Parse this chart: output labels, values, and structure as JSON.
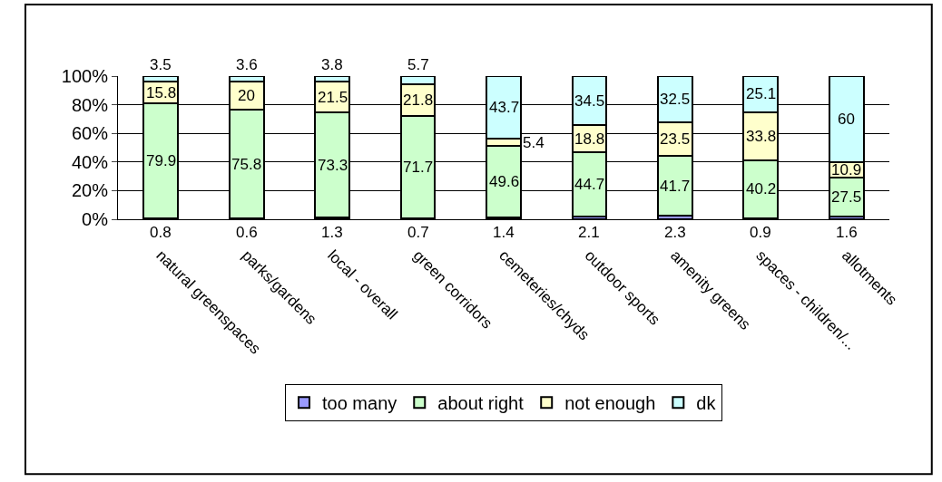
{
  "chart_data": {
    "type": "bar",
    "stacked": true,
    "categories": [
      "natural greenspaces",
      "parks/gardens",
      "local - overall",
      "green corridors",
      "cemeteries/chyds",
      "outdoor sports",
      "amenity greens",
      "spaces - children/...",
      "allotments"
    ],
    "series": [
      {
        "name": "too many",
        "color": "#9999ff",
        "values": [
          0.8,
          0.6,
          1.3,
          0.7,
          1.4,
          2.1,
          2.3,
          0.9,
          1.6
        ]
      },
      {
        "name": "about right",
        "color": "#ccffcc",
        "values": [
          79.9,
          75.8,
          73.3,
          71.7,
          49.6,
          44.7,
          41.7,
          40.2,
          27.5
        ]
      },
      {
        "name": "not enough",
        "color": "#ffffcc",
        "values": [
          15.8,
          20,
          21.5,
          21.8,
          5.4,
          18.8,
          23.5,
          33.8,
          10.9
        ]
      },
      {
        "name": "dk",
        "color": "#ccffff",
        "values": [
          3.5,
          3.6,
          3.8,
          5.7,
          43.7,
          34.5,
          32.5,
          25.1,
          60
        ]
      }
    ],
    "ylim": [
      0,
      100
    ],
    "yticks": [
      {
        "value": 0,
        "label": "0%"
      },
      {
        "value": 20,
        "label": "20%"
      },
      {
        "value": 40,
        "label": "40%"
      },
      {
        "value": 60,
        "label": "60%"
      },
      {
        "value": 80,
        "label": "80%"
      },
      {
        "value": 100,
        "label": "100%"
      }
    ],
    "grid": "y",
    "legend": "bottom",
    "data_labels": true
  }
}
